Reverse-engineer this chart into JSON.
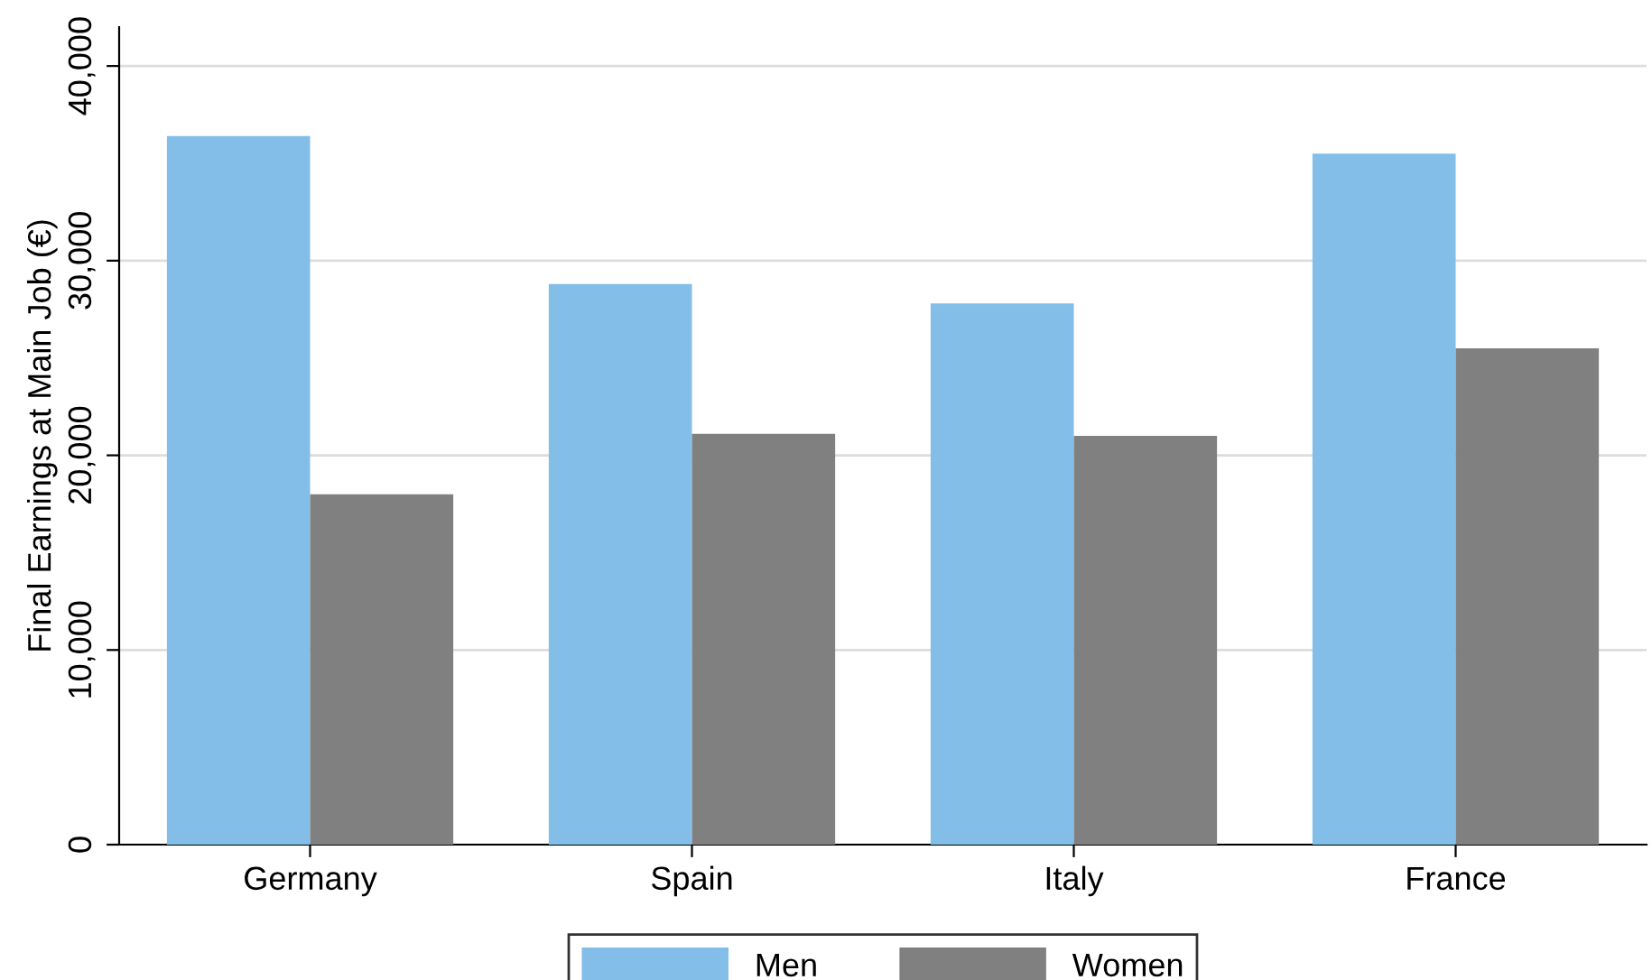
{
  "chart_data": {
    "type": "bar",
    "ylabel": "Final Earnings at Main Job (€)",
    "categories": [
      "Germany",
      "Spain",
      "Italy",
      "France"
    ],
    "series": [
      {
        "name": "Men",
        "color": "#82bee8",
        "values": [
          36400,
          28800,
          27800,
          35500
        ]
      },
      {
        "name": "Women",
        "color": "#808080",
        "values": [
          18000,
          21100,
          21000,
          25500
        ]
      }
    ],
    "ylim": [
      0,
      42000
    ],
    "yticks": [
      {
        "value": 0,
        "label": "0"
      },
      {
        "value": 10000,
        "label": "10,000"
      },
      {
        "value": 20000,
        "label": "20,000"
      },
      {
        "value": 30000,
        "label": "30,000"
      },
      {
        "value": 40000,
        "label": "40,000"
      }
    ],
    "grid": "y",
    "legend": "bottom"
  }
}
